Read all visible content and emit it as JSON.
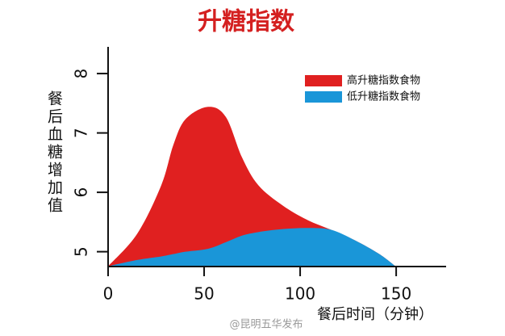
{
  "chart_data": {
    "type": "area",
    "title": "升糖指数",
    "y_label": "餐后血糖增加值",
    "x_label": "餐后时间（分钟）",
    "x": [
      0,
      15.1,
      27.7,
      34,
      40.3,
      52.1,
      61.3,
      69.7,
      78.2,
      90.8,
      103.4,
      116,
      128.6,
      141.2,
      149.6
    ],
    "series": [
      {
        "name": "高升糖指数食物",
        "color": "#e02020",
        "values": [
          4.755,
          5.3,
          6.12,
          6.8,
          7.23,
          7.44,
          7.27,
          6.59,
          6.12,
          5.78,
          5.54,
          5.37,
          5.19,
          4.96,
          4.755
        ]
      },
      {
        "name": "低升糖指数食物",
        "color": "#1a96d8",
        "values": [
          4.755,
          4.86,
          4.92,
          4.96,
          5.0,
          5.05,
          5.16,
          5.27,
          5.33,
          5.38,
          5.4,
          5.37,
          5.19,
          4.96,
          4.755
        ]
      }
    ],
    "xlim": [
      0,
      176
    ],
    "ylim": [
      4.75,
      8.45
    ],
    "xticks": [
      0,
      50,
      100,
      150
    ],
    "yticks": [
      5,
      6,
      7,
      8
    ],
    "legend": "upper right",
    "watermark": "@昆明五华发布"
  }
}
